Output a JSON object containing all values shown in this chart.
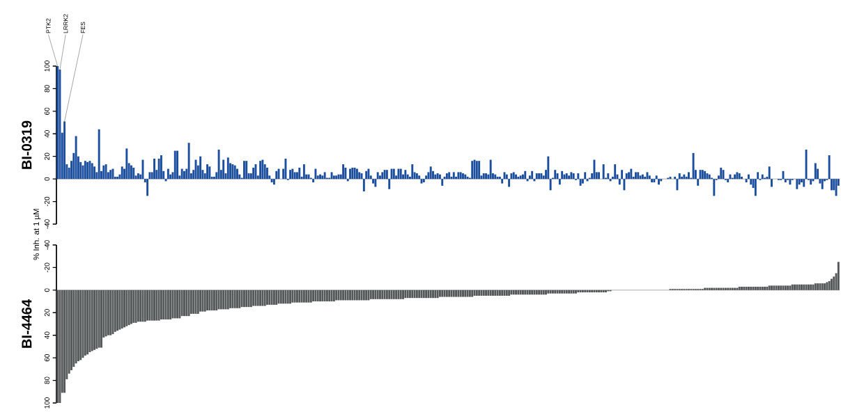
{
  "chart_data": [
    {
      "type": "bar",
      "title": "BI-0319",
      "ylabel": "% Inh. at 1 µM",
      "color": "#1c4e9e",
      "ylim": [
        -40,
        100
      ],
      "yticks": [
        -40,
        -20,
        0,
        20,
        40,
        60,
        80,
        100
      ],
      "annotations": [
        "PTK2",
        "LRRK2",
        "FES"
      ],
      "categories": [
        null,
        null,
        null,
        null,
        null,
        null,
        null,
        null,
        null,
        null,
        null,
        null,
        null,
        null,
        null,
        null,
        null,
        null,
        null,
        null,
        null,
        null,
        null,
        null,
        null,
        null,
        null,
        null,
        null,
        null,
        null,
        null,
        null,
        null,
        null,
        null,
        null,
        null,
        null,
        null,
        null,
        null,
        null,
        null,
        null,
        null,
        null,
        null,
        null,
        null,
        null,
        null,
        null,
        null,
        null,
        null,
        null,
        null,
        null,
        null,
        null,
        null,
        null,
        null,
        null,
        null,
        null,
        null,
        null,
        null,
        null,
        null,
        null,
        null,
        null,
        null,
        null,
        null,
        null,
        null,
        null,
        null,
        null,
        null,
        null,
        null,
        null,
        null,
        null,
        null,
        null,
        null,
        null,
        null,
        null,
        null,
        null,
        null,
        null,
        null,
        null,
        null,
        null,
        null,
        null,
        null,
        null,
        null,
        null,
        null,
        null,
        null,
        null,
        null,
        null,
        null,
        null,
        null,
        null,
        null,
        null,
        null,
        null,
        null,
        null,
        null,
        null,
        null,
        null,
        null,
        null,
        null,
        null,
        null,
        null,
        null,
        null,
        null,
        null,
        null,
        null,
        null,
        null,
        null,
        null,
        null,
        null,
        null,
        null,
        null,
        null,
        null,
        null,
        null,
        null,
        null,
        null,
        null,
        null,
        null,
        null,
        null,
        null,
        null,
        null,
        null,
        null,
        null,
        null,
        null,
        null,
        null,
        null,
        null,
        null,
        null,
        null,
        null,
        null,
        null,
        null,
        null,
        null,
        null,
        null,
        null,
        null,
        null,
        null,
        null,
        null,
        null,
        null,
        null,
        null,
        null,
        null,
        null,
        null,
        null,
        null,
        null,
        null,
        null,
        null,
        null,
        null,
        null,
        null,
        null,
        null,
        null,
        null,
        null,
        null,
        null,
        null,
        null,
        null,
        null,
        null,
        null,
        null,
        null,
        null,
        null,
        null,
        null,
        null,
        null,
        null,
        null,
        null,
        null,
        null,
        null,
        null,
        null,
        null,
        null,
        null,
        null,
        null,
        null,
        null,
        null,
        null,
        null,
        null,
        null,
        null,
        null,
        null,
        null,
        null,
        null,
        null,
        null,
        null,
        null,
        null,
        null,
        null,
        null,
        null,
        null,
        null,
        null,
        null,
        null,
        null,
        null,
        null,
        null,
        null,
        null,
        null,
        null,
        null,
        null,
        null,
        null,
        null,
        null,
        null,
        null,
        null,
        null,
        null,
        null,
        null,
        null,
        null,
        null,
        null,
        null,
        null,
        null,
        null,
        null,
        null,
        null,
        null,
        null,
        null,
        null,
        null,
        null,
        null,
        null,
        null,
        null,
        null,
        null,
        null,
        null,
        null,
        null,
        null,
        null,
        null,
        null,
        null,
        null,
        null,
        null,
        null,
        null,
        null,
        null,
        null,
        null,
        null,
        null,
        null,
        null,
        null,
        null,
        null,
        null
      ],
      "values": [
        100,
        97,
        41,
        51,
        13,
        10,
        16,
        23,
        38,
        20,
        15,
        12,
        16,
        15,
        16,
        14,
        11,
        6,
        44,
        7,
        12,
        13,
        6,
        8,
        9,
        2,
        2,
        4,
        11,
        9,
        27,
        14,
        12,
        10,
        3,
        5,
        4,
        17,
        -3,
        -15,
        6,
        6,
        18,
        8,
        18,
        21,
        7,
        -2,
        9,
        4,
        6,
        25,
        25,
        3,
        9,
        7,
        9,
        32,
        5,
        8,
        17,
        12,
        20,
        8,
        5,
        13,
        11,
        2,
        2,
        6,
        26,
        8,
        17,
        5,
        19,
        14,
        13,
        12,
        9,
        4,
        1,
        16,
        16,
        5,
        5,
        10,
        13,
        3,
        16,
        17,
        13,
        10,
        3,
        -3,
        -5,
        7,
        9,
        0,
        9,
        18,
        -1,
        8,
        9,
        6,
        6,
        10,
        2,
        13,
        4,
        4,
        1,
        -3,
        9,
        3,
        4,
        3,
        6,
        1,
        1,
        6,
        3,
        3,
        4,
        4,
        13,
        10,
        -2,
        9,
        10,
        10,
        9,
        6,
        5,
        -11,
        7,
        9,
        3,
        -4,
        -7,
        6,
        3,
        6,
        8,
        8,
        -9,
        9,
        9,
        3,
        9,
        9,
        4,
        8,
        4,
        2,
        13,
        6,
        5,
        3,
        -4,
        -3,
        3,
        6,
        11,
        7,
        4,
        5,
        4,
        -6,
        2,
        5,
        6,
        2,
        6,
        2,
        6,
        6,
        5,
        4,
        2,
        1,
        16,
        17,
        16,
        16,
        3,
        5,
        5,
        4,
        17,
        5,
        4,
        2,
        2,
        -4,
        6,
        4,
        -7,
        5,
        6,
        4,
        2,
        3,
        4,
        7,
        -2,
        3,
        7,
        -2,
        5,
        5,
        5,
        3,
        8,
        20,
        -10,
        1,
        8,
        5,
        -5,
        7,
        4,
        5,
        3,
        6,
        5,
        -1,
        5,
        -6,
        -4,
        6,
        -2,
        1,
        5,
        17,
        6,
        6,
        0,
        13,
        1,
        5,
        -2,
        2,
        13,
        4,
        -5,
        8,
        -10,
        5,
        6,
        9,
        2,
        6,
        6,
        3,
        4,
        2,
        6,
        3,
        -3,
        -3,
        3,
        -5,
        -2,
        0,
        0,
        1,
        2,
        0,
        2,
        -10,
        5,
        2,
        4,
        2,
        6,
        1,
        23,
        8,
        -6,
        8,
        8,
        7,
        5,
        4,
        1,
        -15,
        -1,
        3,
        10,
        8,
        -1,
        -3,
        4,
        1,
        4,
        6,
        5,
        2,
        0,
        -3,
        4,
        -5,
        -8,
        -15,
        6,
        -1,
        4,
        1,
        2,
        11,
        -7,
        0,
        0,
        -1,
        -1,
        7,
        -3,
        -1,
        -5,
        -1,
        0,
        -9,
        -5,
        -3,
        -7,
        26,
        -1,
        -5,
        -2,
        14,
        9,
        -4,
        -9,
        -2,
        -1,
        21,
        -10,
        -10,
        -15,
        -6
      ]
    },
    {
      "type": "bar",
      "title": "BI-4464",
      "color": "#545858",
      "ylim": [
        100,
        -40
      ],
      "yticks": [
        -40,
        -20,
        0,
        20,
        40,
        60,
        80,
        100
      ],
      "categories": [
        null,
        null,
        null,
        null,
        null,
        null,
        null,
        null,
        null,
        null,
        null,
        null,
        null,
        null,
        null,
        null,
        null,
        null,
        null,
        null,
        null,
        null,
        null,
        null,
        null,
        null,
        null,
        null,
        null,
        null,
        null,
        null,
        null,
        null,
        null,
        null,
        null,
        null,
        null,
        null,
        null,
        null,
        null,
        null,
        null,
        null,
        null,
        null,
        null,
        null,
        null,
        null,
        null,
        null,
        null,
        null,
        null,
        null,
        null,
        null,
        null,
        null,
        null,
        null,
        null,
        null,
        null,
        null,
        null,
        null,
        null,
        null,
        null,
        null,
        null,
        null,
        null,
        null,
        null,
        null,
        null,
        null,
        null,
        null,
        null,
        null,
        null,
        null,
        null,
        null,
        null,
        null,
        null,
        null,
        null,
        null,
        null,
        null,
        null,
        null,
        null,
        null,
        null,
        null,
        null,
        null,
        null,
        null,
        null,
        null,
        null,
        null,
        null,
        null,
        null,
        null,
        null,
        null,
        null,
        null,
        null,
        null,
        null,
        null,
        null,
        null,
        null,
        null,
        null,
        null,
        null,
        null,
        null,
        null,
        null,
        null,
        null,
        null,
        null,
        null,
        null,
        null,
        null,
        null,
        null,
        null,
        null,
        null,
        null,
        null,
        null,
        null,
        null,
        null,
        null,
        null,
        null,
        null,
        null,
        null,
        null,
        null,
        null,
        null,
        null,
        null,
        null,
        null,
        null,
        null,
        null,
        null,
        null,
        null,
        null,
        null,
        null,
        null,
        null,
        null,
        null,
        null,
        null,
        null,
        null,
        null,
        null,
        null,
        null,
        null,
        null,
        null,
        null,
        null,
        null,
        null,
        null,
        null,
        null,
        null,
        null,
        null,
        null,
        null,
        null,
        null,
        null,
        null,
        null,
        null,
        null,
        null,
        null,
        null,
        null,
        null,
        null,
        null,
        null,
        null,
        null,
        null,
        null,
        null,
        null,
        null,
        null,
        null,
        null,
        null,
        null,
        null,
        null,
        null,
        null,
        null,
        null,
        null,
        null,
        null,
        null,
        null,
        null,
        null,
        null,
        null,
        null,
        null,
        null,
        null,
        null,
        null,
        null,
        null,
        null,
        null,
        null,
        null,
        null,
        null,
        null,
        null,
        null,
        null,
        null,
        null,
        null,
        null,
        null,
        null,
        null,
        null,
        null,
        null,
        null,
        null,
        null,
        null,
        null,
        null,
        null,
        null,
        null,
        null,
        null,
        null,
        null,
        null,
        null,
        null,
        null,
        null,
        null,
        null,
        null,
        null,
        null,
        null,
        null,
        null,
        null,
        null,
        null,
        null,
        null,
        null,
        null,
        null,
        null,
        null,
        null,
        null,
        null,
        null,
        null,
        null,
        null,
        null,
        null,
        null,
        null,
        null,
        null,
        null,
        null,
        null,
        null,
        null,
        null,
        null,
        null,
        null,
        null,
        null,
        null,
        null,
        null,
        null,
        null,
        null
      ],
      "values": [
        100,
        100,
        91,
        91,
        79,
        74,
        71,
        68,
        65,
        63,
        62,
        60,
        58,
        57,
        55,
        54,
        53,
        52,
        51,
        51,
        42,
        41,
        40,
        40,
        39,
        37,
        36,
        35,
        34,
        33,
        32,
        31,
        30,
        29,
        29,
        28,
        28,
        28,
        28,
        27,
        27,
        27,
        27,
        27,
        27,
        26,
        26,
        26,
        26,
        26,
        25,
        25,
        25,
        25,
        23,
        23,
        23,
        23,
        21,
        21,
        21,
        21,
        19,
        19,
        19,
        18,
        18,
        18,
        18,
        18,
        17,
        17,
        17,
        17,
        17,
        16,
        16,
        16,
        16,
        16,
        15,
        15,
        15,
        15,
        15,
        14,
        14,
        14,
        14,
        14,
        14,
        13,
        13,
        13,
        13,
        13,
        12,
        12,
        12,
        12,
        12,
        12,
        11,
        11,
        11,
        11,
        11,
        11,
        11,
        11,
        11,
        10,
        10,
        10,
        10,
        10,
        10,
        10,
        10,
        10,
        10,
        9,
        9,
        9,
        9,
        9,
        9,
        9,
        9,
        9,
        9,
        9,
        9,
        9,
        9,
        9,
        8,
        8,
        8,
        8,
        8,
        8,
        8,
        8,
        8,
        8,
        8,
        8,
        8,
        8,
        8,
        7,
        7,
        7,
        7,
        7,
        7,
        7,
        7,
        7,
        7,
        7,
        7,
        7,
        7,
        7,
        6,
        6,
        6,
        6,
        6,
        6,
        6,
        6,
        6,
        6,
        6,
        6,
        6,
        6,
        6,
        5,
        5,
        5,
        5,
        5,
        5,
        5,
        5,
        5,
        5,
        5,
        5,
        5,
        5,
        5,
        5,
        4,
        4,
        4,
        4,
        4,
        4,
        4,
        4,
        4,
        4,
        4,
        4,
        4,
        4,
        4,
        4,
        3,
        3,
        3,
        3,
        3,
        3,
        3,
        3,
        3,
        3,
        3,
        3,
        3,
        2,
        2,
        2,
        2,
        2,
        2,
        2,
        2,
        2,
        2,
        2,
        2,
        2,
        1,
        1,
        0,
        0,
        0,
        0,
        0,
        0,
        0,
        0,
        0,
        0,
        0,
        0,
        0,
        0,
        0,
        0,
        0,
        0,
        0,
        0,
        0,
        0,
        0,
        0,
        0,
        -1,
        -1,
        -1,
        -1,
        -1,
        -1,
        -1,
        -1,
        -1,
        -1,
        -1,
        -1,
        -1,
        -1,
        -1,
        -2,
        -2,
        -2,
        -2,
        -2,
        -2,
        -2,
        -2,
        -2,
        -2,
        -2,
        -2,
        -2,
        -2,
        -2,
        -3,
        -3,
        -3,
        -3,
        -3,
        -3,
        -3,
        -3,
        -3,
        -3,
        -3,
        -3,
        -3,
        -4,
        -4,
        -4,
        -4,
        -4,
        -4,
        -4,
        -4,
        -4,
        -4,
        -5,
        -5,
        -5,
        -5,
        -5,
        -5,
        -5,
        -5,
        -5,
        -5,
        -6,
        -6,
        -6,
        -6,
        -6,
        -7,
        -8,
        -10,
        -12,
        -15,
        -25
      ]
    }
  ]
}
